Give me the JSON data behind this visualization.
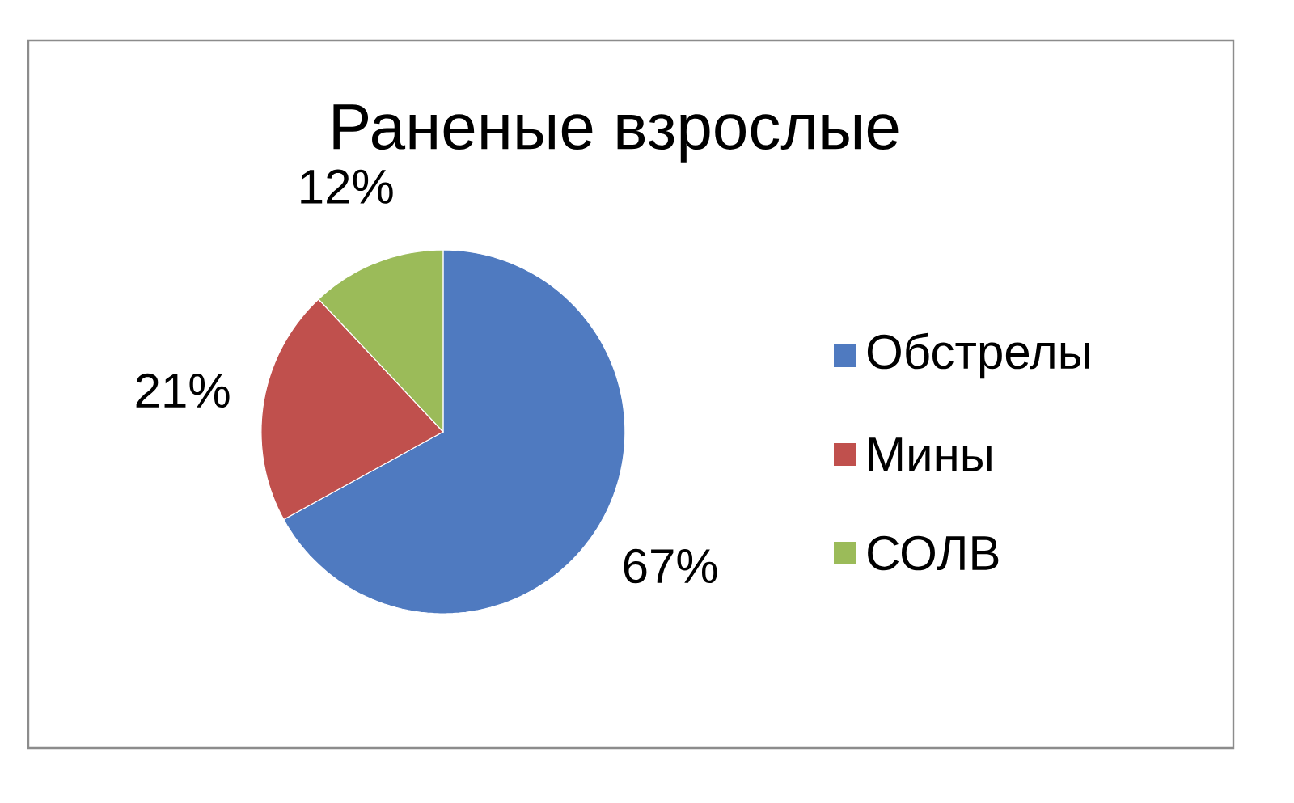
{
  "chart_data": {
    "type": "pie",
    "title": "Раненые взрослые",
    "categories": [
      "Обстрелы",
      "Мины",
      "СОЛВ"
    ],
    "values": [
      67,
      21,
      12
    ],
    "colors": [
      "#4f7ac0",
      "#c0504d",
      "#9bbb59"
    ],
    "value_labels": [
      "67%",
      "21%",
      "12%"
    ],
    "legend": "right"
  }
}
